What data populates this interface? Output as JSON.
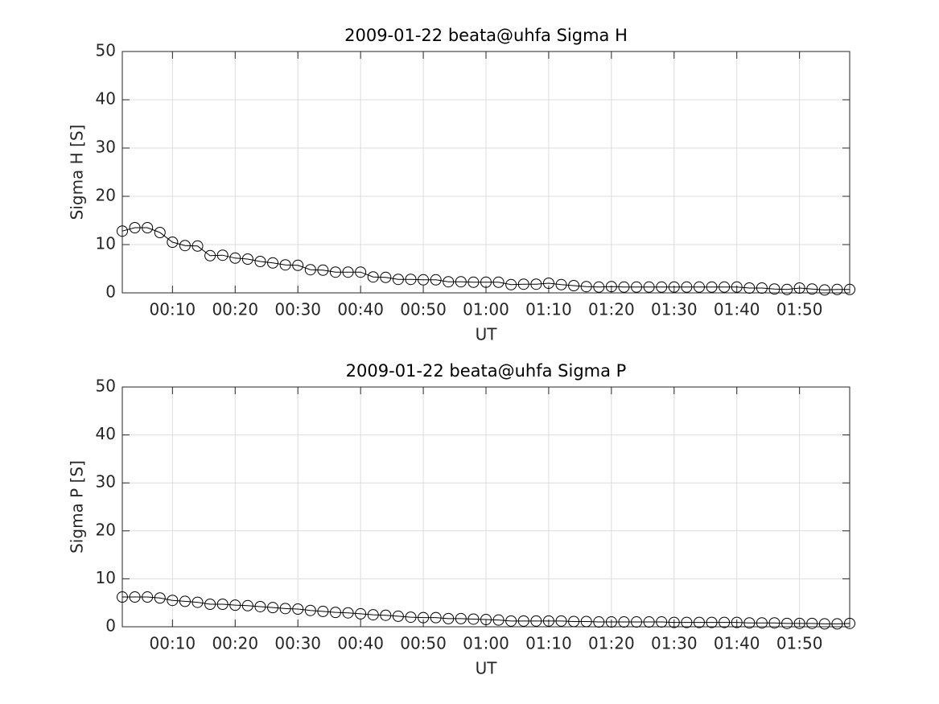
{
  "chart_data": [
    {
      "type": "line",
      "title": "2009-01-22  beata@uhfa Sigma H",
      "xlabel": "UT",
      "ylabel": "Sigma H [S]",
      "x": [
        2,
        4,
        6,
        8,
        10,
        12,
        14,
        16,
        18,
        20,
        22,
        24,
        26,
        28,
        30,
        32,
        34,
        36,
        38,
        40,
        42,
        44,
        46,
        48,
        50,
        52,
        54,
        56,
        58,
        60,
        62,
        64,
        66,
        68,
        70,
        72,
        74,
        76,
        78,
        80,
        82,
        84,
        86,
        88,
        90,
        92,
        94,
        96,
        98,
        100,
        102,
        104,
        106,
        108,
        110,
        112,
        114,
        116,
        118
      ],
      "series": [
        {
          "name": "Sigma H",
          "color": "#000000",
          "values": [
            12.8,
            13.5,
            13.5,
            12.5,
            10.5,
            9.8,
            9.7,
            7.7,
            7.8,
            7.2,
            7.0,
            6.5,
            6.2,
            5.8,
            5.7,
            4.8,
            4.7,
            4.3,
            4.3,
            4.3,
            3.3,
            3.2,
            2.8,
            2.8,
            2.7,
            2.7,
            2.3,
            2.3,
            2.2,
            2.2,
            2.2,
            1.7,
            1.8,
            1.8,
            2.0,
            1.7,
            1.5,
            1.3,
            1.2,
            1.3,
            1.2,
            1.2,
            1.2,
            1.2,
            1.2,
            1.2,
            1.2,
            1.2,
            1.2,
            1.2,
            1.0,
            1.0,
            0.8,
            0.7,
            1.0,
            0.8,
            0.6,
            0.7,
            0.7
          ]
        }
      ],
      "xlim": [
        2,
        118
      ],
      "ylim": [
        0,
        50
      ],
      "xticks": [
        {
          "value": 10,
          "label": "00:10"
        },
        {
          "value": 20,
          "label": "00:20"
        },
        {
          "value": 30,
          "label": "00:30"
        },
        {
          "value": 40,
          "label": "00:40"
        },
        {
          "value": 50,
          "label": "00:50"
        },
        {
          "value": 60,
          "label": "01:00"
        },
        {
          "value": 70,
          "label": "01:10"
        },
        {
          "value": 80,
          "label": "01:20"
        },
        {
          "value": 90,
          "label": "01:30"
        },
        {
          "value": 100,
          "label": "01:40"
        },
        {
          "value": 110,
          "label": "01:50"
        }
      ],
      "yticks": [
        0,
        10,
        20,
        30,
        40,
        50
      ],
      "grid": true
    },
    {
      "type": "line",
      "title": "2009-01-22  beata@uhfa Sigma P",
      "xlabel": "UT",
      "ylabel": "Sigma P [S]",
      "x": [
        2,
        4,
        6,
        8,
        10,
        12,
        14,
        16,
        18,
        20,
        22,
        24,
        26,
        28,
        30,
        32,
        34,
        36,
        38,
        40,
        42,
        44,
        46,
        48,
        50,
        52,
        54,
        56,
        58,
        60,
        62,
        64,
        66,
        68,
        70,
        72,
        74,
        76,
        78,
        80,
        82,
        84,
        86,
        88,
        90,
        92,
        94,
        96,
        98,
        100,
        102,
        104,
        106,
        108,
        110,
        112,
        114,
        116,
        118
      ],
      "series": [
        {
          "name": "Sigma P",
          "color": "#000000",
          "values": [
            6.2,
            6.2,
            6.2,
            6.0,
            5.5,
            5.3,
            5.1,
            4.7,
            4.7,
            4.5,
            4.4,
            4.2,
            4.0,
            3.8,
            3.7,
            3.4,
            3.2,
            3.0,
            2.9,
            2.7,
            2.5,
            2.4,
            2.2,
            2.0,
            1.9,
            1.9,
            1.7,
            1.7,
            1.6,
            1.5,
            1.4,
            1.2,
            1.2,
            1.2,
            1.2,
            1.2,
            1.1,
            1.1,
            1.0,
            1.0,
            1.0,
            1.0,
            1.0,
            1.0,
            0.9,
            0.9,
            0.9,
            0.9,
            0.9,
            0.9,
            0.8,
            0.8,
            0.8,
            0.7,
            0.7,
            0.7,
            0.6,
            0.6,
            0.7
          ]
        }
      ],
      "xlim": [
        2,
        118
      ],
      "ylim": [
        0,
        50
      ],
      "xticks": [
        {
          "value": 10,
          "label": "00:10"
        },
        {
          "value": 20,
          "label": "00:20"
        },
        {
          "value": 30,
          "label": "00:30"
        },
        {
          "value": 40,
          "label": "00:40"
        },
        {
          "value": 50,
          "label": "00:50"
        },
        {
          "value": 60,
          "label": "01:00"
        },
        {
          "value": 70,
          "label": "01:10"
        },
        {
          "value": 80,
          "label": "01:20"
        },
        {
          "value": 90,
          "label": "01:30"
        },
        {
          "value": 100,
          "label": "01:40"
        },
        {
          "value": 110,
          "label": "01:50"
        }
      ],
      "yticks": [
        0,
        10,
        20,
        30,
        40,
        50
      ],
      "grid": true
    }
  ]
}
